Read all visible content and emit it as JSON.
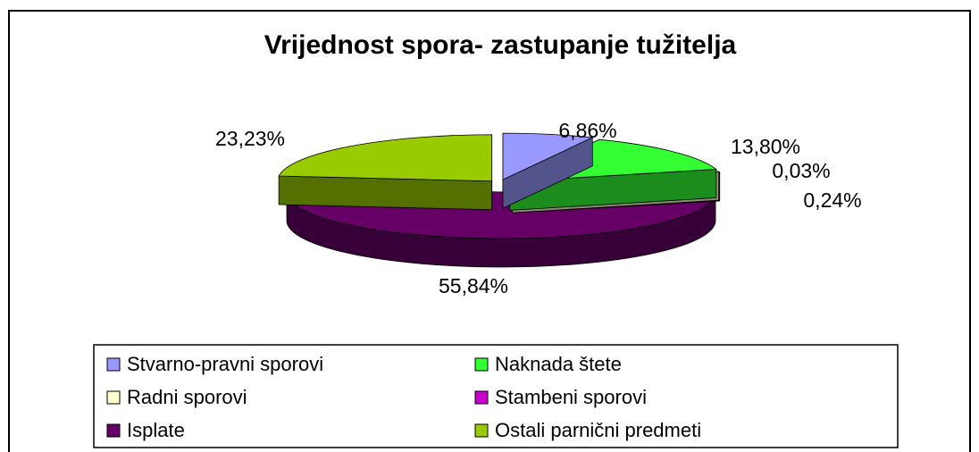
{
  "chart_data": {
    "type": "pie3d",
    "title": "Vrijednost spora- zastupanje tužitelja",
    "categories": [
      "Stvarno-pravni sporovi",
      "Naknada štete",
      "Radni sporovi",
      "Stambeni sporovi",
      "Isplate",
      "Ostali parnični predmeti"
    ],
    "values": [
      6.86,
      13.8,
      0.03,
      0.24,
      55.84,
      23.23
    ],
    "value_labels": [
      "6,86%",
      "13,80%",
      "0,03%",
      "0,24%",
      "55,84%",
      "23,23%"
    ],
    "colors": [
      "#9999ff",
      "#33ff33",
      "#ffffcc",
      "#cc00cc",
      "#660066",
      "#99cc00"
    ],
    "legend": "bottom"
  }
}
